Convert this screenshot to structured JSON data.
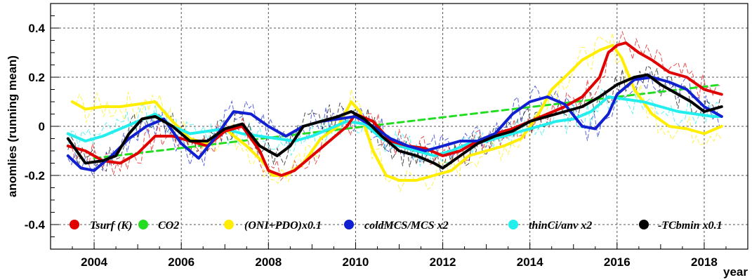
{
  "chart_data": {
    "type": "line",
    "xlabel": "year",
    "ylabel": "anomlies (running mean)",
    "xlim": [
      2003.0,
      2019.0
    ],
    "ylim": [
      -0.5,
      0.5
    ],
    "x_ticks": [
      2004,
      2006,
      2008,
      2010,
      2012,
      2014,
      2016,
      2018
    ],
    "x_tick_labels": [
      "2004",
      "2006",
      "2008",
      "2010",
      "2012",
      "2014",
      "2016",
      "2018"
    ],
    "y_ticks": [
      -0.4,
      -0.2,
      0,
      0.2,
      0.4
    ],
    "y_tick_labels": [
      "-0.4",
      "-0.2",
      "0",
      "0.2",
      "0.4"
    ],
    "grid": true,
    "legend_position": "bottom",
    "series": [
      {
        "name": "Tsurf (K)",
        "color": "#e00000",
        "x": [
          2003.4,
          2003.8,
          2004.2,
          2004.6,
          2005.0,
          2005.4,
          2005.8,
          2006.2,
          2006.6,
          2007.0,
          2007.4,
          2007.8,
          2008.0,
          2008.3,
          2008.6,
          2009.0,
          2009.4,
          2009.8,
          2010.0,
          2010.4,
          2010.8,
          2011.2,
          2011.6,
          2012.0,
          2012.4,
          2012.8,
          2013.2,
          2013.6,
          2014.0,
          2014.4,
          2014.8,
          2015.2,
          2015.6,
          2015.8,
          2016.0,
          2016.2,
          2016.5,
          2016.8,
          2017.2,
          2017.6,
          2018.0,
          2018.4
        ],
        "values": [
          -0.08,
          -0.1,
          -0.14,
          -0.15,
          -0.11,
          -0.04,
          -0.04,
          -0.06,
          -0.08,
          -0.02,
          0.0,
          -0.1,
          -0.18,
          -0.2,
          -0.18,
          -0.12,
          -0.06,
          0.0,
          0.05,
          0.02,
          -0.06,
          -0.08,
          -0.09,
          -0.12,
          -0.1,
          -0.06,
          -0.03,
          -0.01,
          0.02,
          0.05,
          0.08,
          0.12,
          0.2,
          0.3,
          0.33,
          0.34,
          0.3,
          0.27,
          0.22,
          0.2,
          0.15,
          0.13
        ]
      },
      {
        "name": "CO2",
        "color": "#22dd22",
        "dashed": true,
        "x": [
          2004.0,
          2018.4
        ],
        "values": [
          -0.13,
          0.17
        ]
      },
      {
        "name": "(ONI+PDO)x0.1",
        "color": "#ffee00",
        "x": [
          2003.5,
          2003.8,
          2004.2,
          2004.6,
          2005.0,
          2005.4,
          2005.8,
          2006.2,
          2006.6,
          2007.0,
          2007.5,
          2007.9,
          2008.1,
          2008.4,
          2008.8,
          2009.2,
          2009.6,
          2009.9,
          2010.1,
          2010.4,
          2010.7,
          2011.0,
          2011.4,
          2011.8,
          2012.2,
          2012.6,
          2013.0,
          2013.4,
          2013.8,
          2014.2,
          2014.5,
          2014.8,
          2015.2,
          2015.6,
          2015.9,
          2016.1,
          2016.4,
          2016.8,
          2017.2,
          2017.6,
          2018.0,
          2018.4
        ],
        "values": [
          0.1,
          0.07,
          0.08,
          0.08,
          0.09,
          0.1,
          0.02,
          -0.05,
          -0.07,
          -0.01,
          -0.08,
          -0.15,
          -0.2,
          -0.2,
          -0.15,
          -0.05,
          0.0,
          0.1,
          0.06,
          -0.1,
          -0.2,
          -0.22,
          -0.22,
          -0.2,
          -0.18,
          -0.12,
          -0.1,
          -0.08,
          -0.05,
          0.05,
          0.15,
          0.2,
          0.27,
          0.31,
          0.33,
          0.28,
          0.15,
          0.05,
          0.0,
          -0.01,
          -0.03,
          0.0
        ]
      },
      {
        "name": "coldMCS/MCS x2",
        "color": "#1020d0",
        "x": [
          2003.4,
          2003.7,
          2004.0,
          2004.4,
          2004.8,
          2005.2,
          2005.6,
          2006.0,
          2006.4,
          2006.8,
          2007.2,
          2007.6,
          2008.0,
          2008.4,
          2008.8,
          2009.2,
          2009.6,
          2010.0,
          2010.4,
          2010.8,
          2011.2,
          2011.6,
          2012.0,
          2012.4,
          2012.8,
          2013.2,
          2013.6,
          2014.0,
          2014.4,
          2014.8,
          2015.2,
          2015.5,
          2015.8,
          2016.0,
          2016.4,
          2016.8,
          2017.2,
          2017.6,
          2018.0,
          2018.4
        ],
        "values": [
          -0.12,
          -0.17,
          -0.18,
          -0.12,
          -0.05,
          0.0,
          0.03,
          -0.07,
          -0.13,
          -0.04,
          0.06,
          0.05,
          0.0,
          -0.04,
          0.0,
          0.02,
          0.03,
          0.04,
          0.0,
          -0.05,
          -0.08,
          -0.1,
          -0.08,
          -0.06,
          -0.06,
          -0.03,
          0.05,
          0.1,
          0.12,
          0.09,
          0.0,
          -0.01,
          0.05,
          0.13,
          0.19,
          0.2,
          0.18,
          0.15,
          0.08,
          0.04
        ]
      },
      {
        "name": "thinCi/anv x2",
        "color": "#22eeee",
        "x": [
          2003.4,
          2003.8,
          2004.2,
          2004.6,
          2005.0,
          2005.4,
          2005.8,
          2006.2,
          2006.6,
          2007.0,
          2007.4,
          2007.8,
          2008.2,
          2008.6,
          2009.0,
          2009.4,
          2009.8,
          2010.2,
          2010.6,
          2011.0,
          2011.4,
          2011.8,
          2012.2,
          2012.6,
          2013.0,
          2013.4,
          2013.8,
          2014.2,
          2014.6,
          2015.0,
          2015.4,
          2015.8,
          2016.2,
          2016.6,
          2017.0,
          2017.4,
          2017.8,
          2018.2,
          2018.4
        ],
        "values": [
          -0.03,
          -0.06,
          -0.04,
          -0.01,
          0.02,
          0.05,
          0.0,
          -0.03,
          -0.02,
          -0.01,
          -0.03,
          -0.04,
          -0.05,
          -0.06,
          -0.04,
          -0.01,
          0.02,
          0.01,
          -0.05,
          -0.08,
          -0.1,
          -0.12,
          -0.1,
          -0.07,
          -0.06,
          -0.04,
          -0.02,
          0.0,
          0.02,
          0.03,
          0.06,
          0.12,
          0.11,
          0.1,
          0.08,
          0.06,
          0.05,
          0.04,
          0.04
        ]
      },
      {
        "name": "-TCbmin x0.1",
        "color": "#000000",
        "x": [
          2003.4,
          2003.8,
          2004.2,
          2004.5,
          2004.8,
          2005.1,
          2005.4,
          2005.8,
          2006.2,
          2006.6,
          2007.0,
          2007.4,
          2007.8,
          2008.2,
          2008.5,
          2008.8,
          2009.2,
          2009.6,
          2009.9,
          2010.2,
          2010.6,
          2011.0,
          2011.4,
          2011.8,
          2012.0,
          2012.4,
          2012.8,
          2013.2,
          2013.6,
          2014.0,
          2014.4,
          2014.8,
          2015.2,
          2015.6,
          2016.0,
          2016.4,
          2016.7,
          2017.0,
          2017.4,
          2017.7,
          2018.0,
          2018.4
        ],
        "values": [
          -0.05,
          -0.15,
          -0.14,
          -0.12,
          -0.03,
          0.03,
          0.04,
          0.0,
          -0.06,
          -0.06,
          -0.01,
          0.01,
          -0.08,
          -0.12,
          -0.08,
          0.0,
          0.02,
          0.04,
          0.06,
          0.03,
          -0.04,
          -0.1,
          -0.12,
          -0.15,
          -0.17,
          -0.12,
          -0.07,
          -0.04,
          -0.02,
          0.02,
          0.04,
          0.06,
          0.08,
          0.12,
          0.17,
          0.2,
          0.21,
          0.17,
          0.13,
          0.1,
          0.06,
          0.08
        ]
      }
    ]
  }
}
